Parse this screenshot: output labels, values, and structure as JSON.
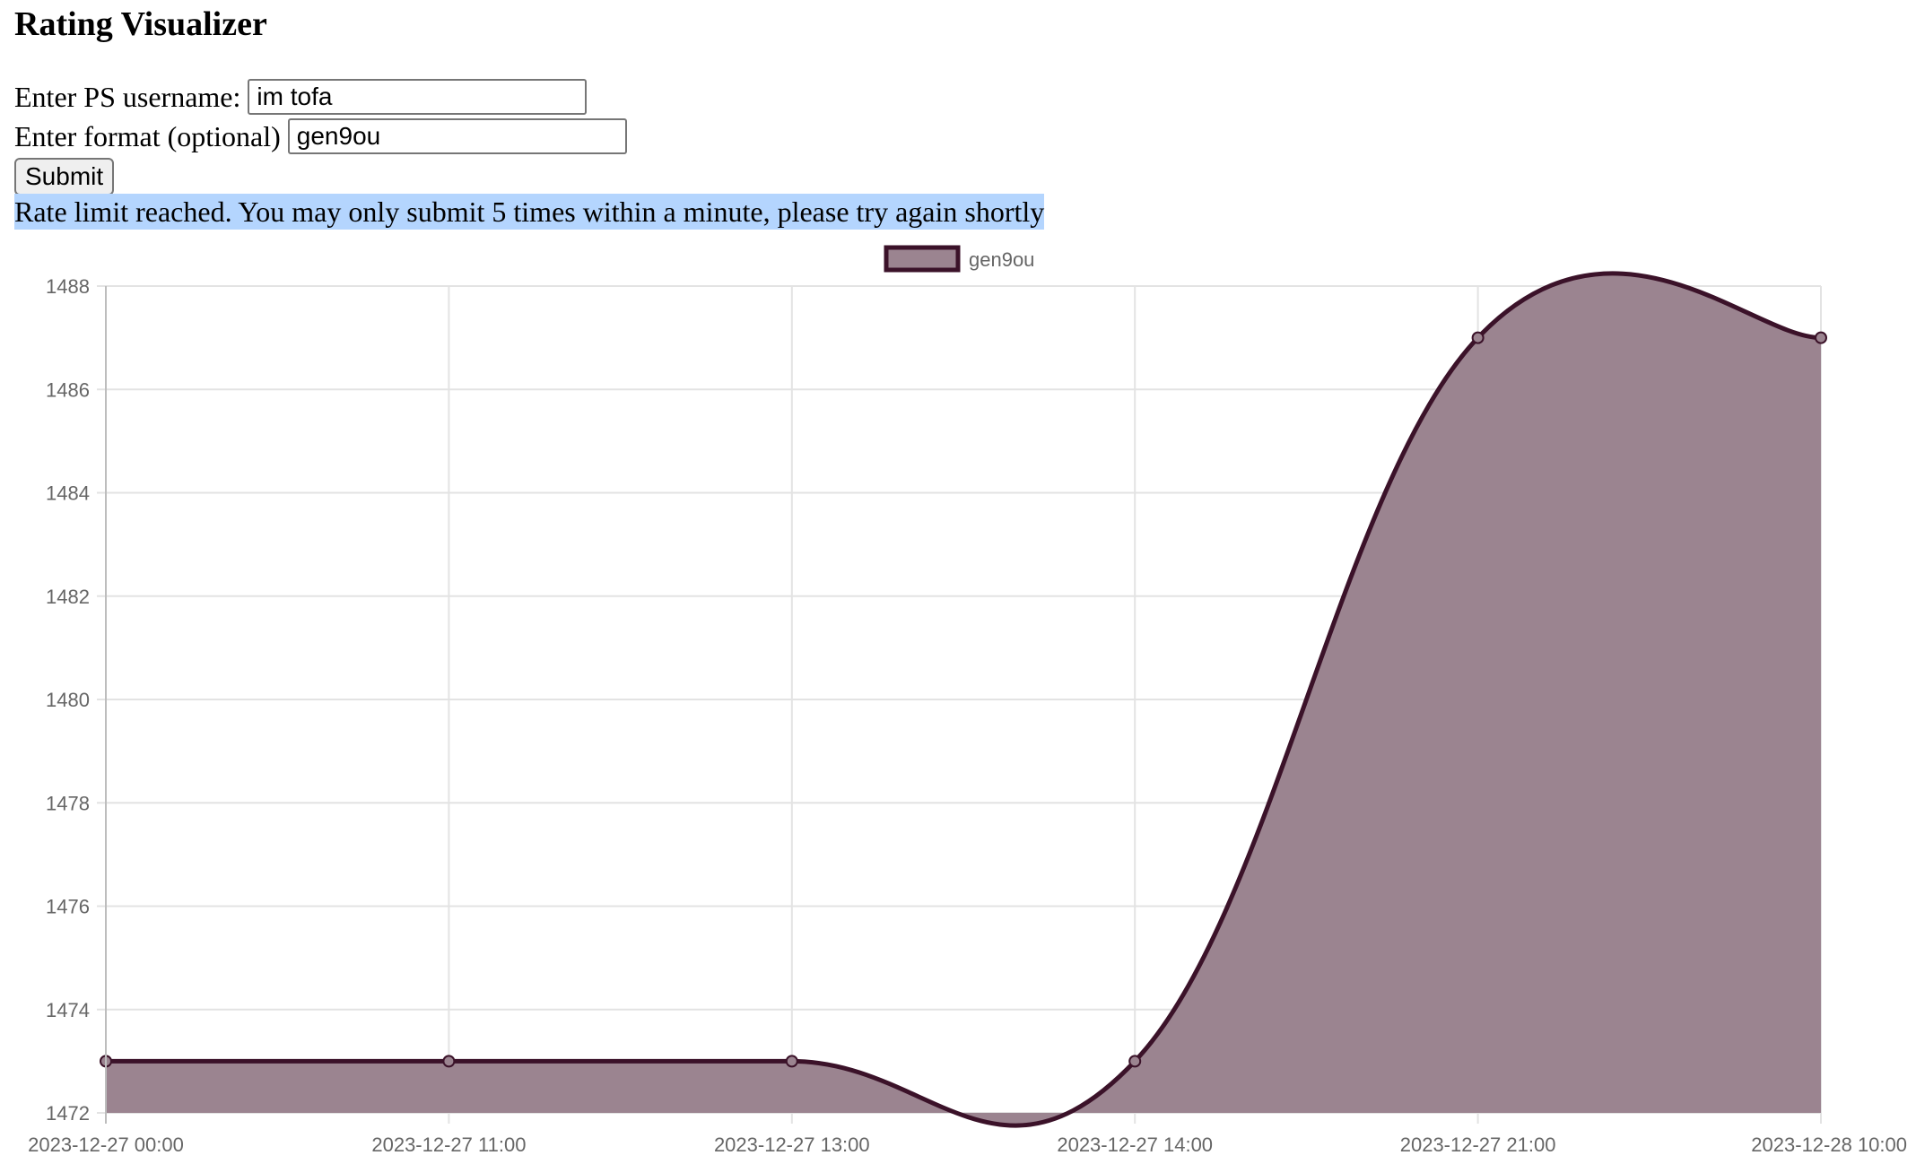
{
  "page": {
    "title": "Rating Visualizer"
  },
  "form": {
    "username_label": "Enter PS username:",
    "username_value": "im tofa",
    "format_label": "Enter format (optional)",
    "format_value": "gen9ou",
    "submit_label": "Submit"
  },
  "status": {
    "message": "Rate limit reached. You may only submit 5 times within a minute, please try again shortly"
  },
  "chart_data": {
    "type": "area",
    "x": [
      "2023-12-27 00:00",
      "2023-12-27 11:00",
      "2023-12-27 13:00",
      "2023-12-27 14:00",
      "2023-12-27 21:00",
      "2023-12-28 10:00"
    ],
    "series": [
      {
        "name": "gen9ou",
        "values": [
          1473,
          1473,
          1473,
          1473,
          1487,
          1487
        ],
        "line_color": "#3b1229",
        "fill_color": "#9b8490"
      }
    ],
    "ylim": [
      1472,
      1488
    ],
    "yticks": [
      1472,
      1474,
      1476,
      1478,
      1480,
      1482,
      1484,
      1486,
      1488
    ],
    "grid": true,
    "legend_position": "top-center",
    "curve": "smooth"
  }
}
